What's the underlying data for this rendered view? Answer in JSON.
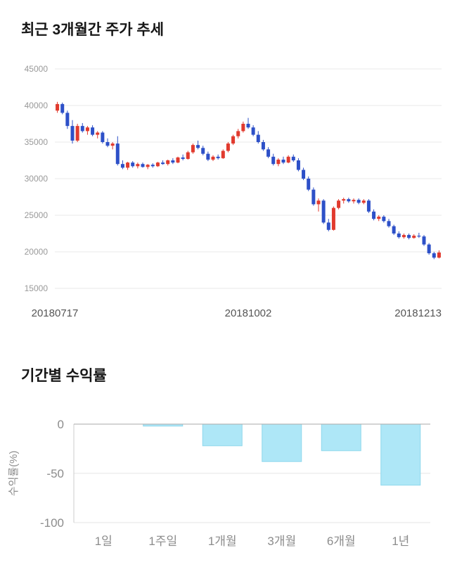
{
  "chart_data": [
    {
      "id": "price",
      "type": "candlestick",
      "title": "최근 3개월간 주가 추세",
      "ylim": [
        15000,
        45000
      ],
      "yticks": [
        45000,
        40000,
        35000,
        30000,
        25000,
        20000,
        15000
      ],
      "xtick_labels": [
        "20180717",
        "20181002",
        "20181213"
      ],
      "up_color": "#e13a2e",
      "down_color": "#2d50c8",
      "grid_color": "#e8e8e8",
      "candles": [
        [
          39300,
          40500,
          39000,
          40200
        ],
        [
          40200,
          40400,
          38800,
          39000
        ],
        [
          39000,
          39300,
          36800,
          37200
        ],
        [
          37200,
          38000,
          34800,
          35200
        ],
        [
          35200,
          37500,
          35000,
          37200
        ],
        [
          37200,
          37600,
          36300,
          36500
        ],
        [
          36500,
          37200,
          36000,
          37000
        ],
        [
          37000,
          37300,
          35800,
          36000
        ],
        [
          36000,
          36500,
          35500,
          36300
        ],
        [
          36300,
          36500,
          34800,
          35000
        ],
        [
          35000,
          35500,
          34300,
          34500
        ],
        [
          34500,
          35000,
          34000,
          34800
        ],
        [
          34800,
          35800,
          31800,
          32000
        ],
        [
          32000,
          32500,
          31300,
          31500
        ],
        [
          31500,
          32300,
          31200,
          32200
        ],
        [
          32200,
          32400,
          31500,
          31700
        ],
        [
          31700,
          32200,
          31400,
          32000
        ],
        [
          32000,
          32200,
          31500,
          31600
        ],
        [
          31600,
          32000,
          31300,
          31900
        ],
        [
          31900,
          32100,
          31500,
          31700
        ],
        [
          31700,
          32300,
          31600,
          32200
        ],
        [
          32200,
          32500,
          31900,
          32000
        ],
        [
          32000,
          32600,
          31800,
          32500
        ],
        [
          32500,
          32800,
          32000,
          32200
        ],
        [
          32200,
          33000,
          32100,
          32900
        ],
        [
          32900,
          33300,
          32500,
          32700
        ],
        [
          32700,
          33800,
          32600,
          33600
        ],
        [
          33600,
          34800,
          33400,
          34600
        ],
        [
          34600,
          35200,
          34000,
          34200
        ],
        [
          34200,
          34500,
          33200,
          33400
        ],
        [
          33400,
          33700,
          32400,
          32600
        ],
        [
          32600,
          33200,
          32400,
          33000
        ],
        [
          33000,
          33300,
          32600,
          32800
        ],
        [
          32800,
          34000,
          32700,
          33800
        ],
        [
          33800,
          35000,
          33600,
          34800
        ],
        [
          34800,
          36000,
          34600,
          35800
        ],
        [
          35800,
          36800,
          35500,
          36500
        ],
        [
          36500,
          37800,
          36300,
          37500
        ],
        [
          37500,
          38300,
          36800,
          37000
        ],
        [
          37000,
          37300,
          35800,
          36000
        ],
        [
          36000,
          36500,
          34800,
          35000
        ],
        [
          35000,
          35300,
          33800,
          34000
        ],
        [
          34000,
          34300,
          32800,
          33000
        ],
        [
          33000,
          33400,
          31800,
          32000
        ],
        [
          32000,
          32800,
          31700,
          32600
        ],
        [
          32600,
          33000,
          32000,
          32200
        ],
        [
          32200,
          33200,
          32100,
          33000
        ],
        [
          33000,
          33300,
          32300,
          32500
        ],
        [
          32500,
          32800,
          31000,
          31200
        ],
        [
          31200,
          31500,
          29800,
          30000
        ],
        [
          30000,
          30300,
          28300,
          28500
        ],
        [
          28500,
          28800,
          26300,
          26500
        ],
        [
          26500,
          27300,
          25500,
          27000
        ],
        [
          27000,
          27200,
          23800,
          24000
        ],
        [
          24000,
          24500,
          22800,
          23000
        ],
        [
          23000,
          26200,
          22900,
          26000
        ],
        [
          26000,
          27200,
          25800,
          27000
        ],
        [
          27000,
          27400,
          26600,
          27200
        ],
        [
          27200,
          27400,
          26700,
          26900
        ],
        [
          26900,
          27300,
          26600,
          27100
        ],
        [
          27100,
          27300,
          26500,
          26700
        ],
        [
          26700,
          27200,
          26500,
          27000
        ],
        [
          27000,
          27200,
          25300,
          25500
        ],
        [
          25500,
          25800,
          24300,
          24500
        ],
        [
          24500,
          25000,
          24200,
          24800
        ],
        [
          24800,
          25000,
          24000,
          24200
        ],
        [
          24200,
          24500,
          23300,
          23500
        ],
        [
          23500,
          23700,
          22300,
          22500
        ],
        [
          22500,
          22800,
          21800,
          22000
        ],
        [
          22000,
          22500,
          21800,
          22300
        ],
        [
          22300,
          22500,
          21700,
          21900
        ],
        [
          21900,
          22400,
          21800,
          22200
        ],
        [
          22200,
          22600,
          21900,
          22100
        ],
        [
          22100,
          22300,
          20800,
          21000
        ],
        [
          21000,
          21200,
          19600,
          19800
        ],
        [
          19800,
          20000,
          19000,
          19200
        ],
        [
          19200,
          20200,
          19100,
          19900
        ]
      ]
    },
    {
      "id": "returns",
      "type": "bar",
      "title": "기간별 수익률",
      "ylabel": "수익률(%)",
      "ylim": [
        -100,
        0
      ],
      "yticks": [
        0,
        -50,
        -100
      ],
      "categories": [
        "1일",
        "1주일",
        "1개월",
        "3개월",
        "6개월",
        "1년"
      ],
      "values": [
        0,
        -2,
        -22,
        -38,
        -27,
        -62
      ],
      "bar_fill": "#aee7f7",
      "bar_stroke": "#8ed7ec",
      "zero_line_color": "#aaaaaa",
      "grid_color": "#e4e4e4",
      "axis_color": "#cccccc"
    }
  ]
}
